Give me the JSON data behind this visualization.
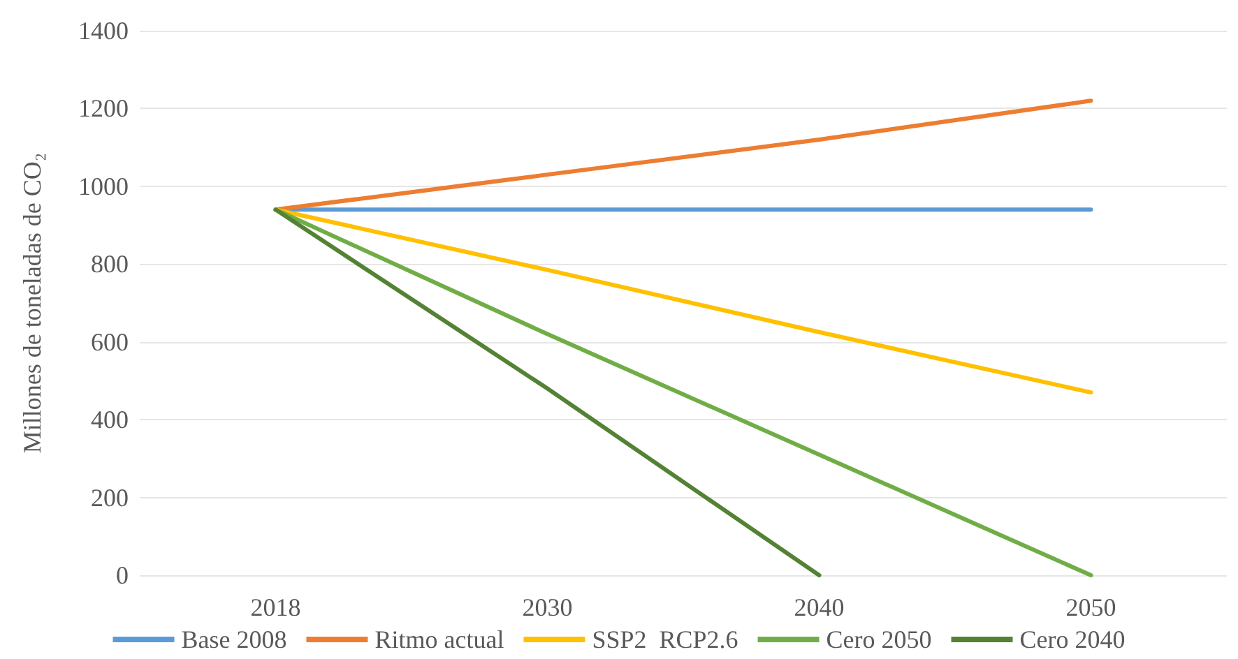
{
  "chart_data": {
    "type": "line",
    "ylabel": "Millones de toneladas de CO₂",
    "categories": [
      "2018",
      "2030",
      "2040",
      "2050"
    ],
    "series": [
      {
        "name": "Base 2008",
        "color": "#5b9bd5",
        "values": [
          940,
          940,
          940,
          940
        ]
      },
      {
        "name": "Ritmo actual",
        "color": "#ed7d31",
        "values": [
          940,
          1030,
          1120,
          1220
        ]
      },
      {
        "name": "SSP2  RCP2.6",
        "color": "#ffc000",
        "values": [
          940,
          785,
          625,
          470
        ]
      },
      {
        "name": "Cero 2050",
        "color": "#70ad47",
        "values": [
          940,
          620,
          310,
          0
        ]
      },
      {
        "name": "Cero 2040",
        "color": "#548235",
        "values": [
          940,
          480,
          0,
          null
        ]
      }
    ],
    "ylim": [
      0,
      1400
    ],
    "yticks": [
      0,
      200,
      400,
      600,
      800,
      1000,
      1200,
      1400
    ],
    "grid": "y",
    "legend": "bottom",
    "marker": "none",
    "line_style": "solid"
  }
}
